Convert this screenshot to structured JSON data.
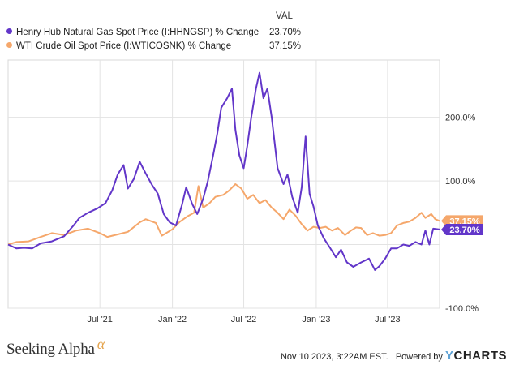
{
  "legend": {
    "header": "VAL",
    "series": [
      {
        "name": "Henry Hub Natural Gas Spot Price (I:HHNGSP) % Change",
        "value": "23.70%",
        "color": "#6236c9"
      },
      {
        "name": "WTI Crude Oil Spot Price (I:WTICOSNK) % Change",
        "value": "37.15%",
        "color": "#f5a76b"
      }
    ]
  },
  "footer": {
    "brand": "Seeking Alpha",
    "brand_symbol": "α",
    "timestamp": "Nov 10 2023, 3:22AM EST.",
    "powered_by": "Powered by",
    "ycharts_y": "Y",
    "ycharts_rest": "CHARTS"
  },
  "chart_data": {
    "type": "line",
    "x_ticks": [
      "Jul '21",
      "Jan '22",
      "Jul '22",
      "Jan '23",
      "Jul '23"
    ],
    "x_tick_dates": [
      "2021-07-01",
      "2022-01-01",
      "2022-07-01",
      "2023-01-01",
      "2023-07-01"
    ],
    "xlim": [
      "2020-11-10",
      "2023-11-10"
    ],
    "y_ticks": [
      200,
      100,
      0,
      -100
    ],
    "y_tick_labels": [
      "200.0%",
      "100.0%",
      "",
      "-100.0%"
    ],
    "ylim": [
      -100,
      290
    ],
    "grid": true,
    "legend_position": "top-left",
    "end_labels": [
      {
        "text": "37.15%",
        "value": 37.15,
        "color": "#f5a76b"
      },
      {
        "text": "23.70%",
        "value": 23.7,
        "color": "#6236c9"
      }
    ],
    "series": [
      {
        "name": "Henry Hub Natural Gas Spot Price (I:HHNGSP) % Change",
        "color": "#6236c9",
        "points": [
          [
            "2020-11-10",
            0
          ],
          [
            "2020-12-01",
            -6
          ],
          [
            "2020-12-20",
            -5
          ],
          [
            "2021-01-10",
            -6
          ],
          [
            "2021-02-01",
            2
          ],
          [
            "2021-03-01",
            5
          ],
          [
            "2021-04-01",
            13
          ],
          [
            "2021-04-25",
            30
          ],
          [
            "2021-05-10",
            42
          ],
          [
            "2021-06-01",
            50
          ],
          [
            "2021-06-25",
            57
          ],
          [
            "2021-07-15",
            65
          ],
          [
            "2021-08-01",
            85
          ],
          [
            "2021-08-15",
            110
          ],
          [
            "2021-08-30",
            125
          ],
          [
            "2021-09-10",
            88
          ],
          [
            "2021-09-25",
            103
          ],
          [
            "2021-10-10",
            130
          ],
          [
            "2021-10-25",
            112
          ],
          [
            "2021-11-10",
            94
          ],
          [
            "2021-11-25",
            80
          ],
          [
            "2021-12-10",
            48
          ],
          [
            "2021-12-25",
            35
          ],
          [
            "2022-01-10",
            30
          ],
          [
            "2022-01-25",
            62
          ],
          [
            "2022-02-05",
            90
          ],
          [
            "2022-02-20",
            64
          ],
          [
            "2022-03-05",
            48
          ],
          [
            "2022-03-20",
            72
          ],
          [
            "2022-04-01",
            100
          ],
          [
            "2022-04-15",
            142
          ],
          [
            "2022-04-25",
            175
          ],
          [
            "2022-05-05",
            215
          ],
          [
            "2022-05-20",
            230
          ],
          [
            "2022-06-01",
            245
          ],
          [
            "2022-06-10",
            180
          ],
          [
            "2022-06-20",
            140
          ],
          [
            "2022-07-01",
            120
          ],
          [
            "2022-07-10",
            155
          ],
          [
            "2022-07-20",
            200
          ],
          [
            "2022-08-01",
            245
          ],
          [
            "2022-08-10",
            270
          ],
          [
            "2022-08-20",
            230
          ],
          [
            "2022-08-30",
            245
          ],
          [
            "2022-09-10",
            200
          ],
          [
            "2022-09-25",
            120
          ],
          [
            "2022-10-10",
            95
          ],
          [
            "2022-10-20",
            110
          ],
          [
            "2022-11-01",
            75
          ],
          [
            "2022-11-15",
            50
          ],
          [
            "2022-11-25",
            90
          ],
          [
            "2022-12-05",
            170
          ],
          [
            "2022-12-15",
            80
          ],
          [
            "2022-12-25",
            60
          ],
          [
            "2023-01-05",
            30
          ],
          [
            "2023-01-20",
            10
          ],
          [
            "2023-02-05",
            -5
          ],
          [
            "2023-02-20",
            -20
          ],
          [
            "2023-03-05",
            -8
          ],
          [
            "2023-03-20",
            -28
          ],
          [
            "2023-04-05",
            -35
          ],
          [
            "2023-04-25",
            -28
          ],
          [
            "2023-05-15",
            -22
          ],
          [
            "2023-05-30",
            -40
          ],
          [
            "2023-06-10",
            -34
          ],
          [
            "2023-06-25",
            -22
          ],
          [
            "2023-07-10",
            -6
          ],
          [
            "2023-07-25",
            -6
          ],
          [
            "2023-08-10",
            0
          ],
          [
            "2023-08-25",
            -2
          ],
          [
            "2023-09-10",
            4
          ],
          [
            "2023-09-25",
            0
          ],
          [
            "2023-10-05",
            22
          ],
          [
            "2023-10-15",
            0
          ],
          [
            "2023-10-25",
            25
          ],
          [
            "2023-11-10",
            23.7
          ]
        ]
      },
      {
        "name": "WTI Crude Oil Spot Price (I:WTICOSNK) % Change",
        "color": "#f5a76b",
        "points": [
          [
            "2020-11-10",
            0
          ],
          [
            "2020-12-01",
            4
          ],
          [
            "2021-01-01",
            5
          ],
          [
            "2021-02-01",
            12
          ],
          [
            "2021-03-01",
            18
          ],
          [
            "2021-04-01",
            15
          ],
          [
            "2021-05-01",
            22
          ],
          [
            "2021-06-01",
            25
          ],
          [
            "2021-07-01",
            18
          ],
          [
            "2021-07-20",
            12
          ],
          [
            "2021-08-15",
            16
          ],
          [
            "2021-09-10",
            20
          ],
          [
            "2021-10-10",
            35
          ],
          [
            "2021-10-25",
            40
          ],
          [
            "2021-11-20",
            34
          ],
          [
            "2021-12-05",
            14
          ],
          [
            "2022-01-01",
            24
          ],
          [
            "2022-01-20",
            36
          ],
          [
            "2022-02-10",
            45
          ],
          [
            "2022-02-25",
            50
          ],
          [
            "2022-03-08",
            92
          ],
          [
            "2022-03-20",
            58
          ],
          [
            "2022-04-05",
            65
          ],
          [
            "2022-04-20",
            75
          ],
          [
            "2022-05-10",
            78
          ],
          [
            "2022-05-25",
            85
          ],
          [
            "2022-06-10",
            95
          ],
          [
            "2022-06-25",
            88
          ],
          [
            "2022-07-10",
            72
          ],
          [
            "2022-07-25",
            78
          ],
          [
            "2022-08-10",
            65
          ],
          [
            "2022-08-25",
            70
          ],
          [
            "2022-09-10",
            58
          ],
          [
            "2022-09-25",
            50
          ],
          [
            "2022-10-10",
            40
          ],
          [
            "2022-10-25",
            55
          ],
          [
            "2022-11-10",
            45
          ],
          [
            "2022-11-25",
            32
          ],
          [
            "2022-12-10",
            22
          ],
          [
            "2022-12-25",
            28
          ],
          [
            "2023-01-10",
            26
          ],
          [
            "2023-01-25",
            28
          ],
          [
            "2023-02-10",
            22
          ],
          [
            "2023-02-25",
            26
          ],
          [
            "2023-03-15",
            15
          ],
          [
            "2023-03-30",
            22
          ],
          [
            "2023-04-12",
            27
          ],
          [
            "2023-04-25",
            26
          ],
          [
            "2023-05-10",
            15
          ],
          [
            "2023-05-25",
            18
          ],
          [
            "2023-06-10",
            14
          ],
          [
            "2023-06-25",
            15
          ],
          [
            "2023-07-10",
            18
          ],
          [
            "2023-07-25",
            30
          ],
          [
            "2023-08-10",
            34
          ],
          [
            "2023-08-25",
            36
          ],
          [
            "2023-09-10",
            42
          ],
          [
            "2023-09-25",
            50
          ],
          [
            "2023-10-05",
            42
          ],
          [
            "2023-10-20",
            48
          ],
          [
            "2023-10-30",
            40
          ],
          [
            "2023-11-10",
            37.15
          ]
        ]
      }
    ]
  }
}
